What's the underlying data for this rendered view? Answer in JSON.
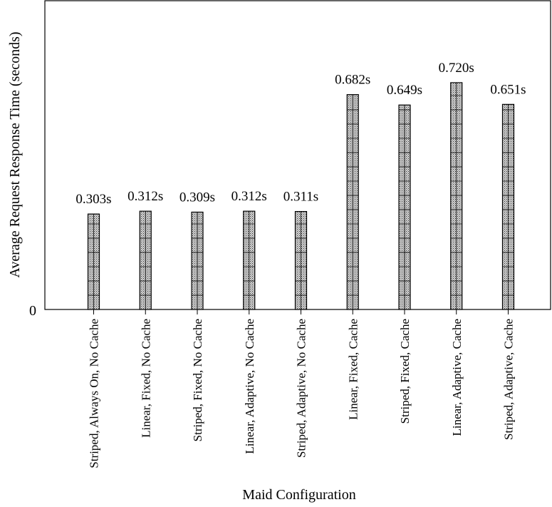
{
  "chart_data": {
    "type": "bar",
    "xlabel": "Maid Configuration",
    "ylabel": "Average Request Response Time (seconds)",
    "categories": [
      "Striped, Always On, No Cache",
      "Linear, Fixed, No Cache",
      "Striped, Fixed, No Cache",
      "Linear, Adaptive, No Cache",
      "Striped, Adaptive, No Cache",
      "Linear, Fixed, Cache",
      "Striped, Fixed, Cache",
      "Linear, Adaptive, Cache",
      "Striped, Adaptive, Cache"
    ],
    "values": [
      0.303,
      0.312,
      0.309,
      0.312,
      0.311,
      0.682,
      0.649,
      0.72,
      0.651
    ],
    "data_labels": [
      "0.303s",
      "0.312s",
      "0.309s",
      "0.312s",
      "0.311s",
      "0.682s",
      "0.649s",
      "0.720s",
      "0.651s"
    ],
    "yticks": [
      "0"
    ],
    "ylim": [
      0,
      0.98
    ],
    "grid": false,
    "legend": "none",
    "colors": {
      "bar_fill": "#bdbdbd",
      "bar_pattern_line": "#000000",
      "axis": "#000000"
    }
  }
}
